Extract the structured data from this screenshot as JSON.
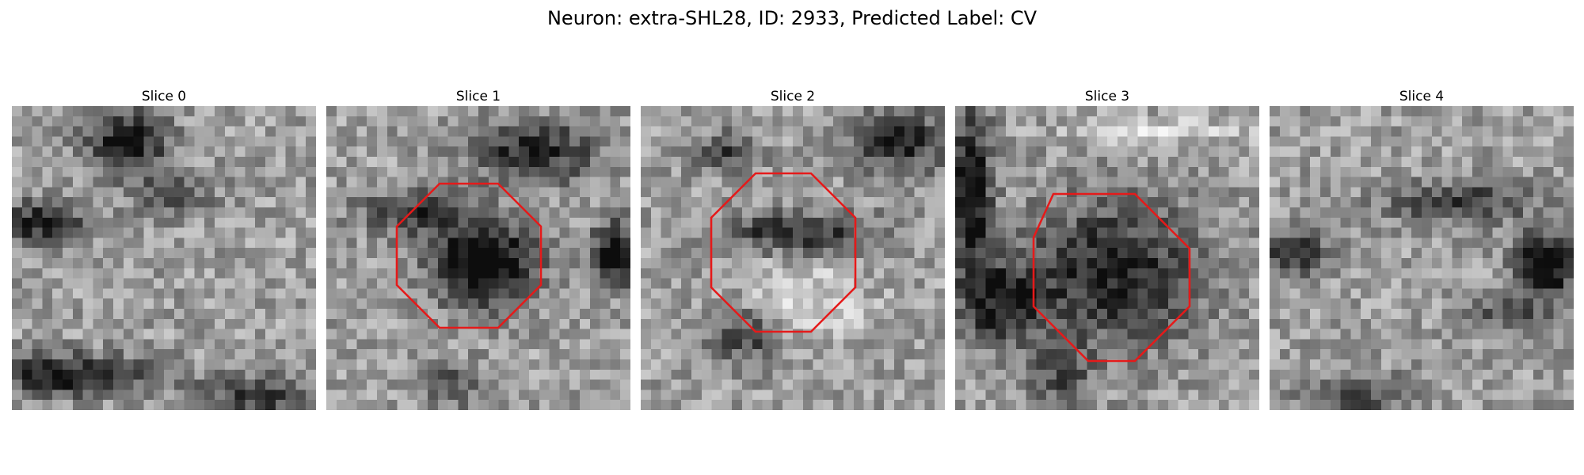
{
  "figure": {
    "title": "Neuron: extra-SHL28, ID: 2933, Predicted Label: CV",
    "overlay_color": "#e51a1a",
    "colormap": "gray"
  },
  "slices": [
    {
      "title": "Slice 0",
      "has_octagon": false
    },
    {
      "title": "Slice 1",
      "has_octagon": true
    },
    {
      "title": "Slice 2",
      "has_octagon": true
    },
    {
      "title": "Slice 3",
      "has_octagon": true
    },
    {
      "title": "Slice 4",
      "has_octagon": false
    }
  ]
}
